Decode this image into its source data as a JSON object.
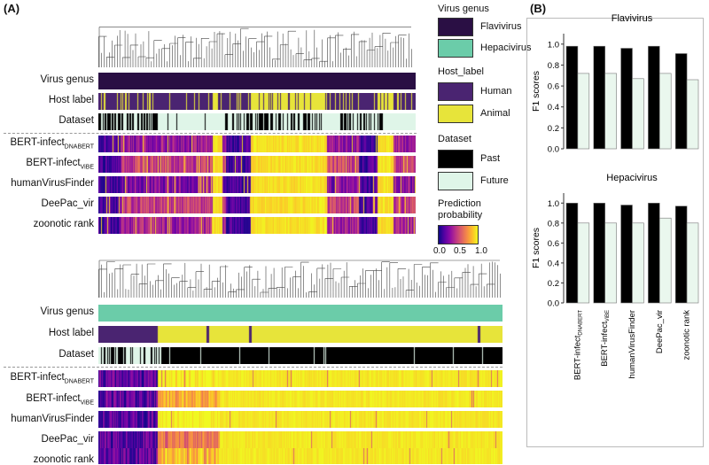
{
  "panel_a": {
    "label": "(A)",
    "flavi_block": {
      "rows": {
        "virus_genus": "Virus genus",
        "host_label": "Host  label",
        "dataset": "Dataset",
        "bert_dnabert_main": "BERT-infect",
        "bert_dnabert_sub": "DNABERT",
        "bert_vibe_main": "BERT-infect",
        "bert_vibe_sub": "ViBE",
        "human_virus_finder": "humanVirusFinder",
        "deepac_vir": "DeePac_vir",
        "zoonotic_rank": "zoonotic rank"
      }
    },
    "hepaci_block": {
      "rows": {
        "virus_genus": "Virus genus",
        "host_label": "Host  label",
        "dataset": "Dataset",
        "bert_dnabert_main": "BERT-infect",
        "bert_dnabert_sub": "DNABERT",
        "bert_vibe_main": "BERT-infect",
        "bert_vibe_sub": "ViBE",
        "human_virus_finder": "humanVirusFinder",
        "deepac_vir": "DeePac_vir",
        "zoonotic_rank": "zoonotic rank"
      }
    },
    "legend": {
      "virus_genus_title": "Virus genus",
      "flavivirus": "Flavivirus",
      "hepacivirus": "Hepacivirus",
      "host_title": "Host_label",
      "human": "Human",
      "animal": "Animal",
      "dataset_title": "Dataset",
      "past": "Past",
      "future": "Future",
      "prob_title_1": "Prediction",
      "prob_title_2": "probability",
      "tick_0": "0.0",
      "tick_05": "0.5",
      "tick_1": "1.0"
    },
    "colors": {
      "flavivirus": "#2a0f44",
      "hepacivirus": "#6bcca9",
      "human": "#4a2471",
      "animal": "#e7e43a",
      "past": "#000000",
      "future": "#dff5e8"
    }
  },
  "panel_b": {
    "label": "(B)",
    "methods_axis": [
      "BERT-infect",
      "BERT-infect",
      "humanVirusFinder",
      "DeePac_vir",
      "zoonotic rank"
    ],
    "method_subs": [
      "DNABERT",
      "ViBE",
      "",
      "",
      ""
    ]
  },
  "chart_data": [
    {
      "type": "bar",
      "title": "Flavivirus",
      "ylabel": "F1 scores",
      "xlabel": "",
      "ylim": [
        0,
        1.1
      ],
      "yticks": [
        "0.0",
        "0.2",
        "0.4",
        "0.6",
        "0.8",
        "1.0"
      ],
      "categories": [
        "BERT-infect_DNABERT",
        "BERT-infect_ViBE",
        "humanVirusFinder",
        "DeePac_vir",
        "zoonotic rank"
      ],
      "series": [
        {
          "name": "Past",
          "color": "#000000",
          "values": [
            0.98,
            0.98,
            0.96,
            0.98,
            0.91
          ]
        },
        {
          "name": "Future",
          "color": "#eaf7ee",
          "values": [
            0.72,
            0.72,
            0.67,
            0.72,
            0.66
          ]
        }
      ]
    },
    {
      "type": "bar",
      "title": "Hepacivirus",
      "ylabel": "F1 scores",
      "xlabel": "",
      "ylim": [
        0,
        1.1
      ],
      "yticks": [
        "0.0",
        "0.2",
        "0.4",
        "0.6",
        "0.8",
        "1.0"
      ],
      "categories": [
        "BERT-infect_DNABERT",
        "BERT-infect_ViBE",
        "humanVirusFinder",
        "DeePac_vir",
        "zoonotic rank"
      ],
      "series": [
        {
          "name": "Past",
          "color": "#000000",
          "values": [
            1.0,
            1.0,
            0.98,
            1.0,
            0.97
          ]
        },
        {
          "name": "Future",
          "color": "#eaf7ee",
          "values": [
            0.8,
            0.8,
            0.8,
            0.85,
            0.8
          ]
        }
      ]
    }
  ]
}
